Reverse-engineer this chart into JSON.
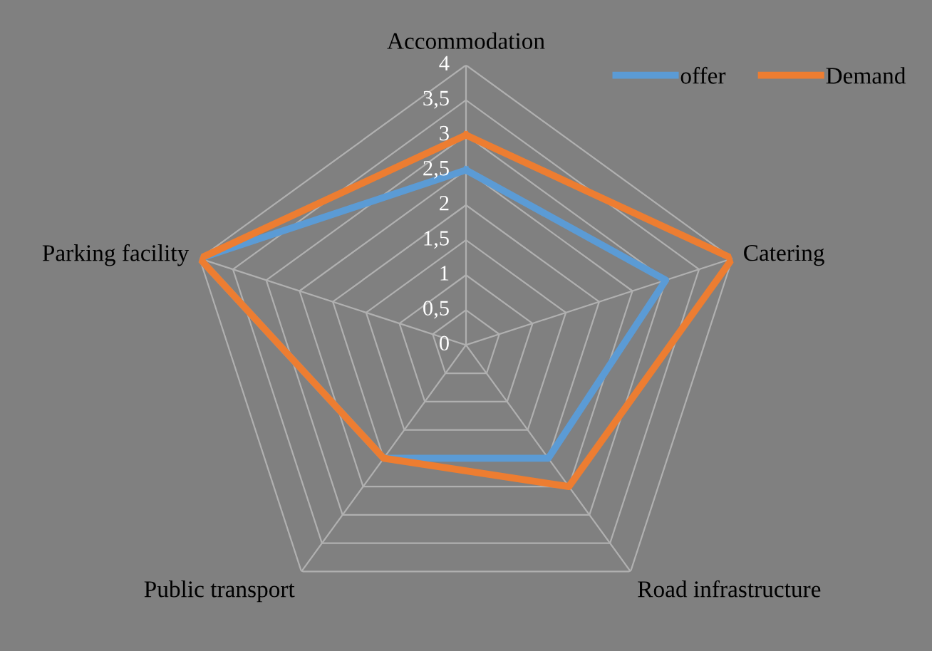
{
  "chart_data": {
    "type": "radar",
    "categories": [
      "Accommodation",
      "Catering",
      "Road infrastructure",
      "Public transport",
      "Parking facility"
    ],
    "series": [
      {
        "name": "offer",
        "color": "#5b9bd5",
        "values": [
          2.5,
          3,
          2,
          2,
          4
        ]
      },
      {
        "name": "Demand",
        "color": "#ed7d31",
        "values": [
          3,
          4,
          2.5,
          2,
          4
        ]
      }
    ],
    "ylim": [
      0,
      4
    ],
    "yticks": [
      0,
      {
        "value": 0.5,
        "label": "0,5"
      },
      1,
      {
        "value": 1.5,
        "label": "1,5"
      },
      2,
      {
        "value": 2.5,
        "label": "2,5"
      },
      3,
      {
        "value": 3.5,
        "label": "3,5"
      },
      4
    ],
    "grid": true,
    "legend": "top right",
    "marker": "none",
    "line_style": "solid"
  }
}
